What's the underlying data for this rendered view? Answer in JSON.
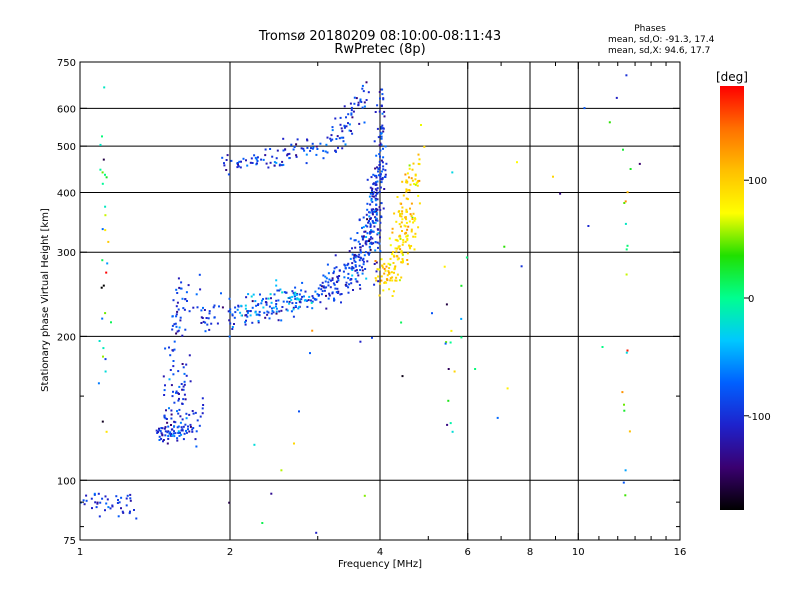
{
  "chart_data": {
    "type": "scatter",
    "title": "Tromsø 20180209 08:10:00-08:11:43",
    "subtitle": "RwPretec (8p)",
    "xlabel": "Frequency [MHz]",
    "ylabel": "Stationary phase Virtual Height [km]",
    "x_scale": "log",
    "y_scale": "log",
    "xlim": [
      1,
      16
    ],
    "ylim": [
      75,
      750
    ],
    "x_ticks": [
      1,
      2,
      4,
      6,
      8,
      10,
      16
    ],
    "x_tick_labels": [
      "1",
      "2",
      "4",
      "6",
      "8",
      "10",
      "16"
    ],
    "x_minor_ticks": [
      3,
      5,
      7,
      9,
      11,
      12,
      13,
      14,
      15
    ],
    "y_ticks": [
      75,
      100,
      200,
      300,
      400,
      500,
      600,
      750
    ],
    "y_tick_labels": [
      "75",
      "100",
      "200",
      "300",
      "400",
      "500",
      "600",
      "750"
    ],
    "y_minor_ticks": [
      80,
      90,
      150
    ],
    "x_gridlines": [
      2,
      4,
      6,
      8,
      10
    ],
    "y_gridlines": [
      100,
      200,
      300,
      400,
      500,
      600
    ],
    "phase_box": {
      "heading": "Phases",
      "line_o": "mean, sd,O: -91.3, 17.4",
      "line_x": "mean, sd,X:  94.6, 17.7"
    },
    "colorbar": {
      "unit": "[deg]",
      "range": [
        -180,
        180
      ],
      "ticks": [
        100,
        0,
        -100
      ],
      "tick_labels": [
        "100",
        "0",
        "-100"
      ],
      "stops": [
        "#000000",
        "#3a0070",
        "#1e22cc",
        "#0060ff",
        "#00c8ff",
        "#00ff90",
        "#20e000",
        "#ffff00",
        "#ffc000",
        "#ff7000",
        "#ff0000"
      ]
    },
    "series": [
      {
        "trace": "O-low",
        "mean_phase": -95,
        "sd_phase": 20,
        "segments": [
          {
            "f": [
              1.0,
              1.3
            ],
            "h": [
              91,
              88
            ],
            "noise": 0.03,
            "n": 45
          },
          {
            "f": [
              1.43,
              1.65
            ],
            "h": [
              126,
              128
            ],
            "noise": 0.02,
            "n": 60
          },
          {
            "f": [
              1.48,
              1.65
            ],
            "h": [
              130,
              160
            ],
            "noise": 0.08,
            "n": 55
          },
          {
            "f": [
              1.62,
              1.75
            ],
            "h": [
              130,
              140
            ],
            "noise": 0.05,
            "n": 25
          },
          {
            "f": [
              1.52,
              1.62
            ],
            "h": [
              180,
              270
            ],
            "noise": 0.06,
            "n": 35
          },
          {
            "f": [
              1.55,
              1.75
            ],
            "h": [
              210,
              260
            ],
            "noise": 0.08,
            "n": 20
          }
        ]
      },
      {
        "trace": "O-F",
        "mean_phase": -95,
        "sd_phase": 22,
        "segments": [
          {
            "f": [
              1.75,
              2.3
            ],
            "h": [
              215,
              228
            ],
            "noise": 0.04,
            "n": 70
          },
          {
            "f": [
              2.3,
              3.0
            ],
            "h": [
              228,
              245
            ],
            "noise": 0.04,
            "n": 80
          },
          {
            "f": [
              3.0,
              3.5
            ],
            "h": [
              245,
              272
            ],
            "noise": 0.05,
            "n": 80
          },
          {
            "f": [
              3.5,
              3.85
            ],
            "h": [
              272,
              330
            ],
            "noise": 0.07,
            "n": 110
          },
          {
            "f": [
              3.8,
              4.05
            ],
            "h": [
              330,
              480
            ],
            "noise": 0.08,
            "n": 110
          },
          {
            "f": [
              3.95,
              4.05
            ],
            "h": [
              300,
              650
            ],
            "noise": 0.08,
            "n": 70
          }
        ]
      },
      {
        "trace": "O-F-cyan",
        "mean_phase": -35,
        "sd_phase": 10,
        "segments": [
          {
            "f": [
              2.1,
              2.9
            ],
            "h": [
              228,
              245
            ],
            "noise": 0.04,
            "n": 40
          }
        ]
      },
      {
        "trace": "O-upper",
        "mean_phase": -95,
        "sd_phase": 20,
        "segments": [
          {
            "f": [
              1.95,
              2.35
            ],
            "h": [
              455,
              465
            ],
            "noise": 0.02,
            "n": 30
          },
          {
            "f": [
              2.35,
              3.2
            ],
            "h": [
              468,
              505
            ],
            "noise": 0.03,
            "n": 60
          },
          {
            "f": [
              3.2,
              3.8
            ],
            "h": [
              505,
              630
            ],
            "noise": 0.05,
            "n": 60
          }
        ]
      },
      {
        "trace": "X-F",
        "mean_phase": 95,
        "sd_phase": 18,
        "segments": [
          {
            "f": [
              4.0,
              4.4
            ],
            "h": [
              268,
              290
            ],
            "noise": 0.05,
            "n": 60
          },
          {
            "f": [
              4.2,
              4.7
            ],
            "h": [
              290,
              340
            ],
            "noise": 0.07,
            "n": 70
          },
          {
            "f": [
              4.4,
              4.8
            ],
            "h": [
              340,
              480
            ],
            "noise": 0.08,
            "n": 70
          }
        ]
      },
      {
        "trace": "stray",
        "mean_phase": 0,
        "sd_phase": 100,
        "segments": [
          {
            "f": [
              1.12,
              1.12
            ],
            "h": [
              150,
              560
            ],
            "noise": 0.3,
            "n": 30
          },
          {
            "f": [
              5.5,
              5.5
            ],
            "h": [
              125,
              200
            ],
            "noise": 0.2,
            "n": 12
          },
          {
            "f": [
              12.5,
              12.5
            ],
            "h": [
              130,
              620
            ],
            "noise": 0.3,
            "n": 18
          },
          {
            "f": [
              2.0,
              15.0
            ],
            "h": [
              90,
              620
            ],
            "noise": 0.4,
            "n": 40
          }
        ]
      }
    ]
  }
}
